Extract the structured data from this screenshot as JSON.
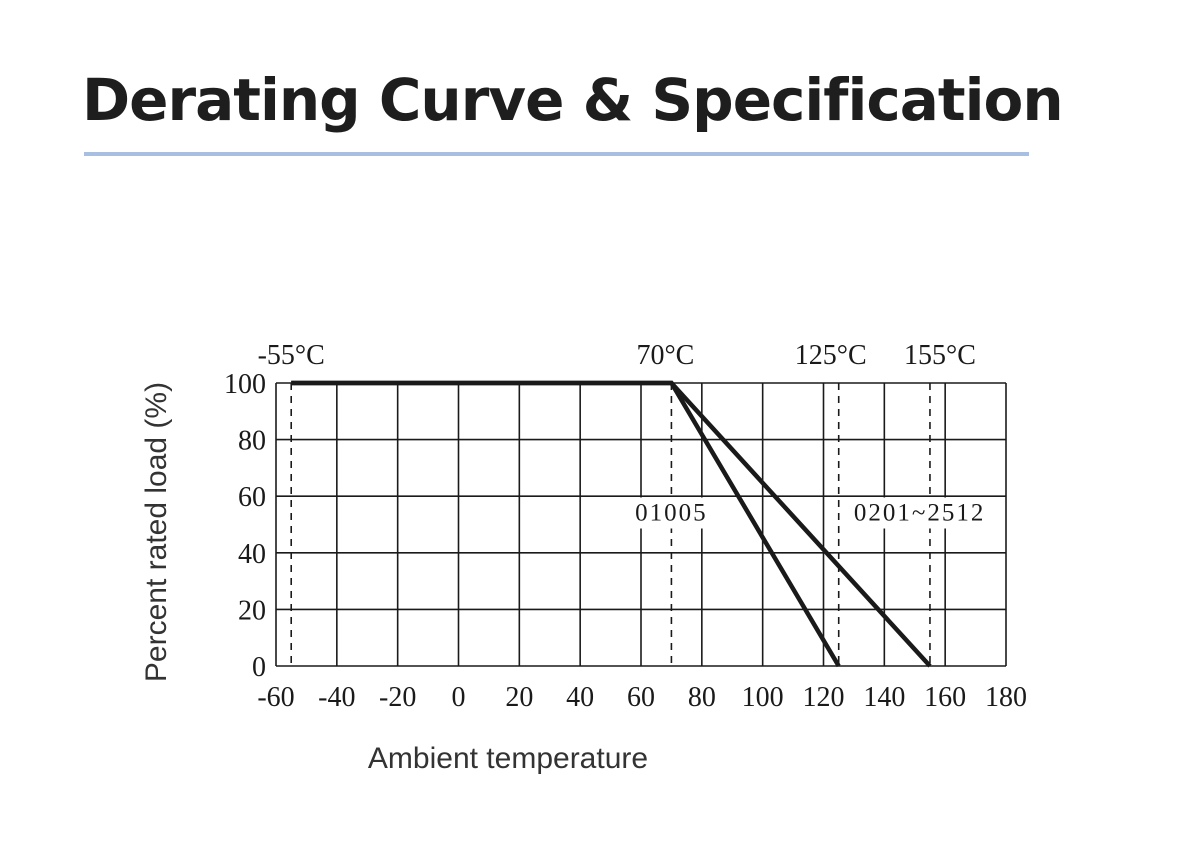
{
  "page": {
    "title": "Derating Curve & Specification"
  },
  "chart_data": {
    "type": "line",
    "title": "",
    "xlabel": "Ambient temperature",
    "ylabel": "Percent rated load (%)",
    "xlim": [
      -60,
      180
    ],
    "ylim": [
      0,
      100
    ],
    "x_ticks": [
      -60,
      -40,
      -20,
      0,
      20,
      40,
      60,
      80,
      100,
      120,
      140,
      160,
      180
    ],
    "y_ticks": [
      0,
      20,
      40,
      60,
      80,
      100
    ],
    "grid": true,
    "series": [
      {
        "name": "01005",
        "x": [
          -55,
          70,
          125
        ],
        "y": [
          100,
          100,
          0
        ]
      },
      {
        "name": "0201~2512",
        "x": [
          -55,
          70,
          155
        ],
        "y": [
          100,
          100,
          0
        ]
      }
    ],
    "series_label_positions": [
      {
        "name": "01005",
        "x": 70,
        "y": 50
      },
      {
        "name": "0201~2512",
        "x": 130,
        "y": 50
      }
    ],
    "reference_lines": [
      {
        "x": -55,
        "label": "-55°C"
      },
      {
        "x": 70,
        "label": "70°C"
      },
      {
        "x": 125,
        "label": "125°C"
      },
      {
        "x": 155,
        "label": "155°C"
      }
    ],
    "colors": {
      "line": "#1a1a1a",
      "grid": "#1a1a1a"
    }
  }
}
